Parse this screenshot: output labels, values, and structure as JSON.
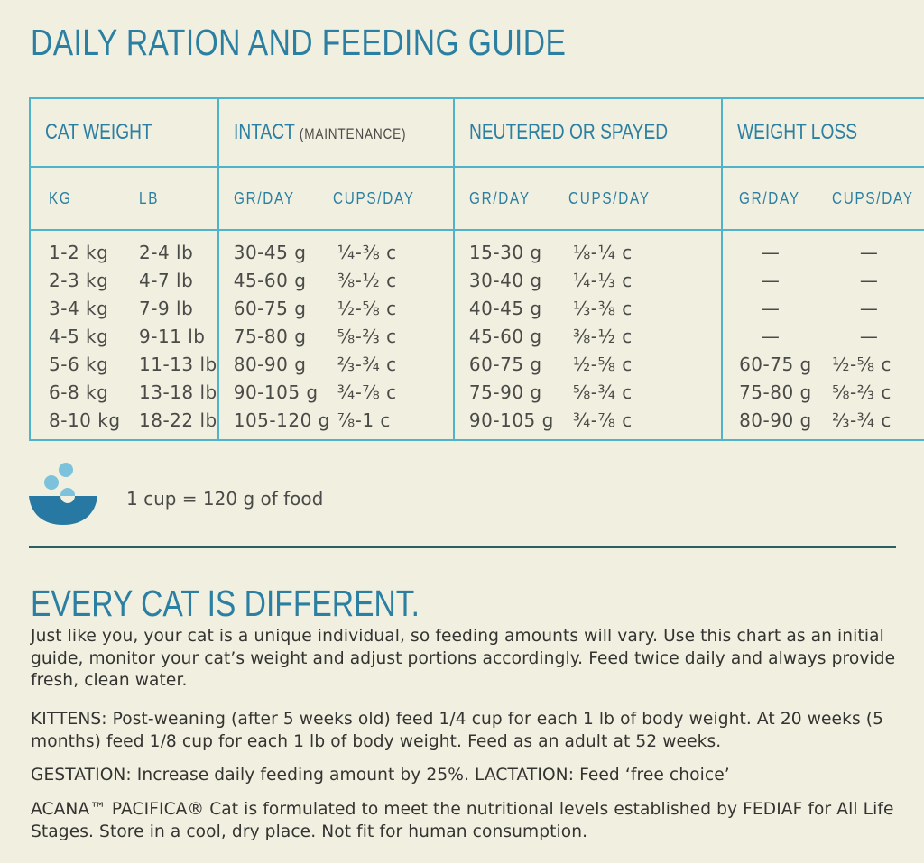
{
  "title": "DAILY RATION AND FEEDING GUIDE",
  "table": {
    "headers": [
      {
        "label": "CAT WEIGHT",
        "note": ""
      },
      {
        "label": "INTACT ",
        "note": "(MAINTENANCE)"
      },
      {
        "label": "NEUTERED OR SPAYED",
        "note": ""
      },
      {
        "label": "WEIGHT LOSS",
        "note": ""
      }
    ],
    "subheaders": [
      [
        "KG",
        "LB"
      ],
      [
        "GR/DAY",
        "CUPS/DAY"
      ],
      [
        "GR/DAY",
        "CUPS/DAY"
      ],
      [
        "GR/DAY",
        "CUPS/DAY"
      ]
    ],
    "rows": [
      {
        "kg": "1-2 kg",
        "lb": "2-4 lb",
        "i_g": "30-45 g",
        "i_c": "¼-⅜ c",
        "n_g": "15-30 g",
        "n_c": "⅛-¼ c",
        "w_g": "—",
        "w_c": "—"
      },
      {
        "kg": "2-3 kg",
        "lb": "4-7 lb",
        "i_g": "45-60 g",
        "i_c": "⅜-½ c",
        "n_g": "30-40 g",
        "n_c": "¼-⅓ c",
        "w_g": "—",
        "w_c": "—"
      },
      {
        "kg": "3-4 kg",
        "lb": "7-9 lb",
        "i_g": "60-75 g",
        "i_c": "½-⅝ c",
        "n_g": "40-45 g",
        "n_c": "⅓-⅜ c",
        "w_g": "—",
        "w_c": "—"
      },
      {
        "kg": "4-5 kg",
        "lb": "9-11 lb",
        "i_g": "75-80 g",
        "i_c": "⅝-⅔ c",
        "n_g": "45-60 g",
        "n_c": "⅜-½ c",
        "w_g": "—",
        "w_c": "—"
      },
      {
        "kg": "5-6 kg",
        "lb": "11-13 lb",
        "i_g": "80-90 g",
        "i_c": "⅔-¾ c",
        "n_g": "60-75 g",
        "n_c": "½-⅝ c",
        "w_g": "60-75 g",
        "w_c": "½-⅝ c"
      },
      {
        "kg": "6-8 kg",
        "lb": "13-18 lb",
        "i_g": "90-105 g",
        "i_c": "¾-⅞ c",
        "n_g": "75-90 g",
        "n_c": "⅝-¾ c",
        "w_g": "75-80 g",
        "w_c": "⅝-⅔ c"
      },
      {
        "kg": "8-10 kg",
        "lb": "18-22 lb",
        "i_g": "105-120 g",
        "i_c": "⅞-1 c",
        "n_g": "90-105 g",
        "n_c": "¾-⅞ c",
        "w_g": "80-90 g",
        "w_c": "⅔-¾ c"
      }
    ]
  },
  "cup_note": "1 cup = 120 g of food",
  "section_title": "EVERY CAT IS DIFFERENT.",
  "paragraphs": [
    "Just like you, your cat is a unique individual, so feeding amounts will vary. Use this chart as an initial guide, monitor your cat’s weight and adjust portions accordingly. Feed twice daily and always provide fresh, clean water.",
    "KITTENS: Post-weaning (after 5 weeks old) feed 1/4 cup for each 1 lb of body weight. At 20 weeks (5 months) feed 1/8 cup for each 1 lb of body weight. Feed as an adult at 52 weeks.",
    "GESTATION: Increase daily feeding amount by 25%. LACTATION: Feed ‘free choice’",
    "ACANA™ PACIFICA® Cat is formulated to meet the nutritional levels established by FEDIAF for All Life Stages. Store in a cool, dry place. Not fit for human consumption."
  ],
  "colors": {
    "background": "#f1efdf",
    "accent": "#2b7fa2",
    "border": "#4fb4c9",
    "bowl": "#2779a3",
    "kibble": "#7cc2dc"
  }
}
